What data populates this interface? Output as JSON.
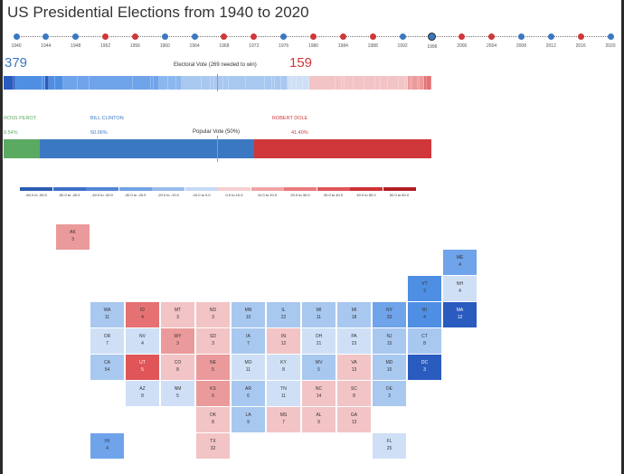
{
  "page_title": "US Presidential Elections from 1940 to 2020",
  "timeline": [
    {
      "year": "1940",
      "color": "#3b78c2"
    },
    {
      "year": "1944",
      "color": "#3b78c2"
    },
    {
      "year": "1948",
      "color": "#3b78c2"
    },
    {
      "year": "1952",
      "color": "#d0373a"
    },
    {
      "year": "1956",
      "color": "#d0373a"
    },
    {
      "year": "1960",
      "color": "#3b78c2"
    },
    {
      "year": "1964",
      "color": "#3b78c2"
    },
    {
      "year": "1968",
      "color": "#d0373a"
    },
    {
      "year": "1972",
      "color": "#d0373a"
    },
    {
      "year": "1976",
      "color": "#3b78c2"
    },
    {
      "year": "1980",
      "color": "#d0373a"
    },
    {
      "year": "1984",
      "color": "#d0373a"
    },
    {
      "year": "1988",
      "color": "#d0373a"
    },
    {
      "year": "1992",
      "color": "#3b78c2"
    },
    {
      "year": "1996",
      "color": "#3b78c2",
      "selected": true
    },
    {
      "year": "2000",
      "color": "#d0373a"
    },
    {
      "year": "2004",
      "color": "#d0373a"
    },
    {
      "year": "2008",
      "color": "#3b78c2"
    },
    {
      "year": "2012",
      "color": "#3b78c2"
    },
    {
      "year": "2016",
      "color": "#d0373a"
    },
    {
      "year": "2020",
      "color": "#3b78c2"
    }
  ],
  "electoral": {
    "dem_total": "379",
    "rep_total": "159",
    "dem_color": "#3b78c2",
    "rep_color": "#d0373a",
    "caption": "Electoral Vote (269 needed to win)",
    "segments": [
      {
        "value": 12,
        "color": "#2a5bbf"
      },
      {
        "value": 3,
        "color": "#2a5bbf"
      },
      {
        "value": 33,
        "color": "#4f8fe3"
      },
      {
        "value": 4,
        "color": "#4f8fe3"
      },
      {
        "value": 4,
        "color": "#2a5bbf"
      },
      {
        "value": 8,
        "color": "#4f8fe3"
      },
      {
        "value": 10,
        "color": "#4f8fe3"
      },
      {
        "value": 18,
        "color": "#6fa3ea"
      },
      {
        "value": 15,
        "color": "#6fa3ea"
      },
      {
        "value": 54,
        "color": "#6fa3ea"
      },
      {
        "value": 22,
        "color": "#6fa3ea"
      },
      {
        "value": 3,
        "color": "#6fa3ea"
      },
      {
        "value": 7,
        "color": "#6fa3ea"
      },
      {
        "value": 11,
        "color": "#8bb7ef"
      },
      {
        "value": 10,
        "color": "#8bb7ef"
      },
      {
        "value": 7,
        "color": "#8bb7ef"
      },
      {
        "value": 25,
        "color": "#a8c8f0"
      },
      {
        "value": 11,
        "color": "#a8c8f0"
      },
      {
        "value": 5,
        "color": "#a8c8f0"
      },
      {
        "value": 11,
        "color": "#a8c8f0"
      },
      {
        "value": 7,
        "color": "#a8c8f0"
      },
      {
        "value": 21,
        "color": "#a8c8f0"
      },
      {
        "value": 23,
        "color": "#a8c8f0"
      },
      {
        "value": 9,
        "color": "#a8c8f0"
      },
      {
        "value": 4,
        "color": "#a8c8f0"
      },
      {
        "value": 8,
        "color": "#a8c8f0"
      },
      {
        "value": 8,
        "color": "#a8c8f0"
      },
      {
        "value": 5,
        "color": "#cfe0f6"
      },
      {
        "value": 6,
        "color": "#cfe0f6"
      },
      {
        "value": 8,
        "color": "#cfe0f6"
      },
      {
        "value": 8,
        "color": "#cfe0f6"
      },
      {
        "value": 32,
        "color": "#f2c4c5"
      },
      {
        "value": 8,
        "color": "#f2c4c5"
      },
      {
        "value": 3,
        "color": "#f2c4c5"
      },
      {
        "value": 12,
        "color": "#f2c4c5"
      },
      {
        "value": 13,
        "color": "#f2c4c5"
      },
      {
        "value": 13,
        "color": "#f2c4c5"
      },
      {
        "value": 7,
        "color": "#f2c4c5"
      },
      {
        "value": 9,
        "color": "#f2c4c5"
      },
      {
        "value": 14,
        "color": "#f2c4c5"
      },
      {
        "value": 8,
        "color": "#f2c4c5"
      },
      {
        "value": 3,
        "color": "#f2c4c5"
      },
      {
        "value": 3,
        "color": "#eb9a9b"
      },
      {
        "value": 3,
        "color": "#eb9a9b"
      },
      {
        "value": 6,
        "color": "#eb9a9b"
      },
      {
        "value": 3,
        "color": "#eb9a9b"
      },
      {
        "value": 5,
        "color": "#eb9a9b"
      },
      {
        "value": 4,
        "color": "#e57173"
      },
      {
        "value": 5,
        "color": "#e57173"
      }
    ]
  },
  "popular": {
    "caption": "Popular Vote (50%)",
    "candidates": [
      {
        "name": "ROSS PEROT",
        "pct": "8.54%",
        "value": 8.54,
        "color": "#5aaa62"
      },
      {
        "name": "BILL CLINTON",
        "pct": "50.06%",
        "value": 50.06,
        "color": "#3b78c2"
      },
      {
        "name": "ROBERT DOLE",
        "pct": "41.40%",
        "value": 41.4,
        "color": "#d0373a"
      }
    ]
  },
  "legend": [
    {
      "label": "-60.0 to -50.0",
      "color": "#2b5cb3"
    },
    {
      "label": "-50.0 to -40.0",
      "color": "#3d6fc8"
    },
    {
      "label": "-40.0 to -30.0",
      "color": "#5286d8"
    },
    {
      "label": "-30.0 to -20.0",
      "color": "#73a2e4"
    },
    {
      "label": "-20.0 to -10.0",
      "color": "#98bcec"
    },
    {
      "label": "-10.0 to 0.0",
      "color": "#c4d9f4"
    },
    {
      "label": "0.0 to 10.0",
      "color": "#f5cfd0"
    },
    {
      "label": "10.0 to 20.0",
      "color": "#f0a4a5"
    },
    {
      "label": "20.0 to 30.0",
      "color": "#e97b7d"
    },
    {
      "label": "30.0 to 40.0",
      "color": "#df5558"
    },
    {
      "label": "40.0 to 50.0",
      "color": "#cf3135"
    },
    {
      "label": "50.0 to 60.0",
      "color": "#b01e22"
    }
  ],
  "states": [
    {
      "abbr": "AK",
      "ev": "3",
      "col": 0,
      "row": 0,
      "color": "#eb9a9b"
    },
    {
      "abbr": "ME",
      "ev": "4",
      "col": 11,
      "row": 1,
      "color": "#6fa3ea"
    },
    {
      "abbr": "VT",
      "ev": "3",
      "col": 10,
      "row": 2,
      "color": "#4f8fe3"
    },
    {
      "abbr": "NH",
      "ev": "4",
      "col": 11,
      "row": 2,
      "color": "#cfe0f6"
    },
    {
      "abbr": "WA",
      "ev": "11",
      "col": 1,
      "row": 3,
      "color": "#a8c8f0"
    },
    {
      "abbr": "ID",
      "ev": "4",
      "col": 2,
      "row": 3,
      "color": "#e57173"
    },
    {
      "abbr": "MT",
      "ev": "3",
      "col": 3,
      "row": 3,
      "color": "#f2c4c5"
    },
    {
      "abbr": "ND",
      "ev": "3",
      "col": 4,
      "row": 3,
      "color": "#f2c4c5"
    },
    {
      "abbr": "MN",
      "ev": "10",
      "col": 5,
      "row": 3,
      "color": "#a8c8f0"
    },
    {
      "abbr": "IL",
      "ev": "22",
      "col": 6,
      "row": 3,
      "color": "#a8c8f0"
    },
    {
      "abbr": "WI",
      "ev": "11",
      "col": 7,
      "row": 3,
      "color": "#a8c8f0"
    },
    {
      "abbr": "MI",
      "ev": "18",
      "col": 8,
      "row": 3,
      "color": "#a8c8f0"
    },
    {
      "abbr": "NY",
      "ev": "33",
      "col": 9,
      "row": 3,
      "color": "#6fa3ea"
    },
    {
      "abbr": "RI",
      "ev": "4",
      "col": 10,
      "row": 3,
      "color": "#4f8fe3"
    },
    {
      "abbr": "MA",
      "ev": "12",
      "col": 11,
      "row": 3,
      "color": "#2a5bbf",
      "dark": true
    },
    {
      "abbr": "OR",
      "ev": "7",
      "col": 1,
      "row": 4,
      "color": "#cfe0f6"
    },
    {
      "abbr": "NV",
      "ev": "4",
      "col": 2,
      "row": 4,
      "color": "#cfe0f6"
    },
    {
      "abbr": "WY",
      "ev": "3",
      "col": 3,
      "row": 4,
      "color": "#eb9a9b"
    },
    {
      "abbr": "SD",
      "ev": "3",
      "col": 4,
      "row": 4,
      "color": "#f2c4c5"
    },
    {
      "abbr": "IA",
      "ev": "7",
      "col": 5,
      "row": 4,
      "color": "#a8c8f0"
    },
    {
      "abbr": "IN",
      "ev": "12",
      "col": 6,
      "row": 4,
      "color": "#f2c4c5"
    },
    {
      "abbr": "OH",
      "ev": "21",
      "col": 7,
      "row": 4,
      "color": "#cfe0f6"
    },
    {
      "abbr": "PA",
      "ev": "23",
      "col": 8,
      "row": 4,
      "color": "#cfe0f6"
    },
    {
      "abbr": "NJ",
      "ev": "15",
      "col": 9,
      "row": 4,
      "color": "#a8c8f0"
    },
    {
      "abbr": "CT",
      "ev": "8",
      "col": 10,
      "row": 4,
      "color": "#a8c8f0"
    },
    {
      "abbr": "CA",
      "ev": "54",
      "col": 1,
      "row": 5,
      "color": "#a8c8f0"
    },
    {
      "abbr": "UT",
      "ev": "5",
      "col": 2,
      "row": 5,
      "color": "#e05557",
      "dark": true
    },
    {
      "abbr": "CO",
      "ev": "8",
      "col": 3,
      "row": 5,
      "color": "#f2c4c5"
    },
    {
      "abbr": "NE",
      "ev": "5",
      "col": 4,
      "row": 5,
      "color": "#eb9a9b"
    },
    {
      "abbr": "MO",
      "ev": "11",
      "col": 5,
      "row": 5,
      "color": "#cfe0f6"
    },
    {
      "abbr": "KY",
      "ev": "8",
      "col": 6,
      "row": 5,
      "color": "#cfe0f6"
    },
    {
      "abbr": "WV",
      "ev": "5",
      "col": 7,
      "row": 5,
      "color": "#a8c8f0"
    },
    {
      "abbr": "VA",
      "ev": "13",
      "col": 8,
      "row": 5,
      "color": "#f2c4c5"
    },
    {
      "abbr": "MD",
      "ev": "10",
      "col": 9,
      "row": 5,
      "color": "#a8c8f0"
    },
    {
      "abbr": "DC",
      "ev": "3",
      "col": 10,
      "row": 5,
      "color": "#2a5bbf",
      "dark": true
    },
    {
      "abbr": "AZ",
      "ev": "8",
      "col": 2,
      "row": 6,
      "color": "#cfe0f6"
    },
    {
      "abbr": "NM",
      "ev": "5",
      "col": 3,
      "row": 6,
      "color": "#cfe0f6"
    },
    {
      "abbr": "KS",
      "ev": "6",
      "col": 4,
      "row": 6,
      "color": "#eb9a9b"
    },
    {
      "abbr": "AR",
      "ev": "6",
      "col": 5,
      "row": 6,
      "color": "#a8c8f0"
    },
    {
      "abbr": "TN",
      "ev": "11",
      "col": 6,
      "row": 6,
      "color": "#cfe0f6"
    },
    {
      "abbr": "NC",
      "ev": "14",
      "col": 7,
      "row": 6,
      "color": "#f2c4c5"
    },
    {
      "abbr": "SC",
      "ev": "8",
      "col": 8,
      "row": 6,
      "color": "#f2c4c5"
    },
    {
      "abbr": "DE",
      "ev": "3",
      "col": 9,
      "row": 6,
      "color": "#a8c8f0"
    },
    {
      "abbr": "OK",
      "ev": "8",
      "col": 4,
      "row": 7,
      "color": "#f2c4c5"
    },
    {
      "abbr": "LA",
      "ev": "9",
      "col": 5,
      "row": 7,
      "color": "#a8c8f0"
    },
    {
      "abbr": "MS",
      "ev": "7",
      "col": 6,
      "row": 7,
      "color": "#f2c4c5"
    },
    {
      "abbr": "AL",
      "ev": "9",
      "col": 7,
      "row": 7,
      "color": "#f2c4c5"
    },
    {
      "abbr": "GA",
      "ev": "13",
      "col": 8,
      "row": 7,
      "color": "#f2c4c5"
    },
    {
      "abbr": "HI",
      "ev": "4",
      "col": 1,
      "row": 8,
      "color": "#6fa3ea"
    },
    {
      "abbr": "TX",
      "ev": "32",
      "col": 4,
      "row": 8,
      "color": "#f2c4c5"
    },
    {
      "abbr": "FL",
      "ev": "25",
      "col": 9,
      "row": 8,
      "color": "#cfe0f6"
    }
  ]
}
